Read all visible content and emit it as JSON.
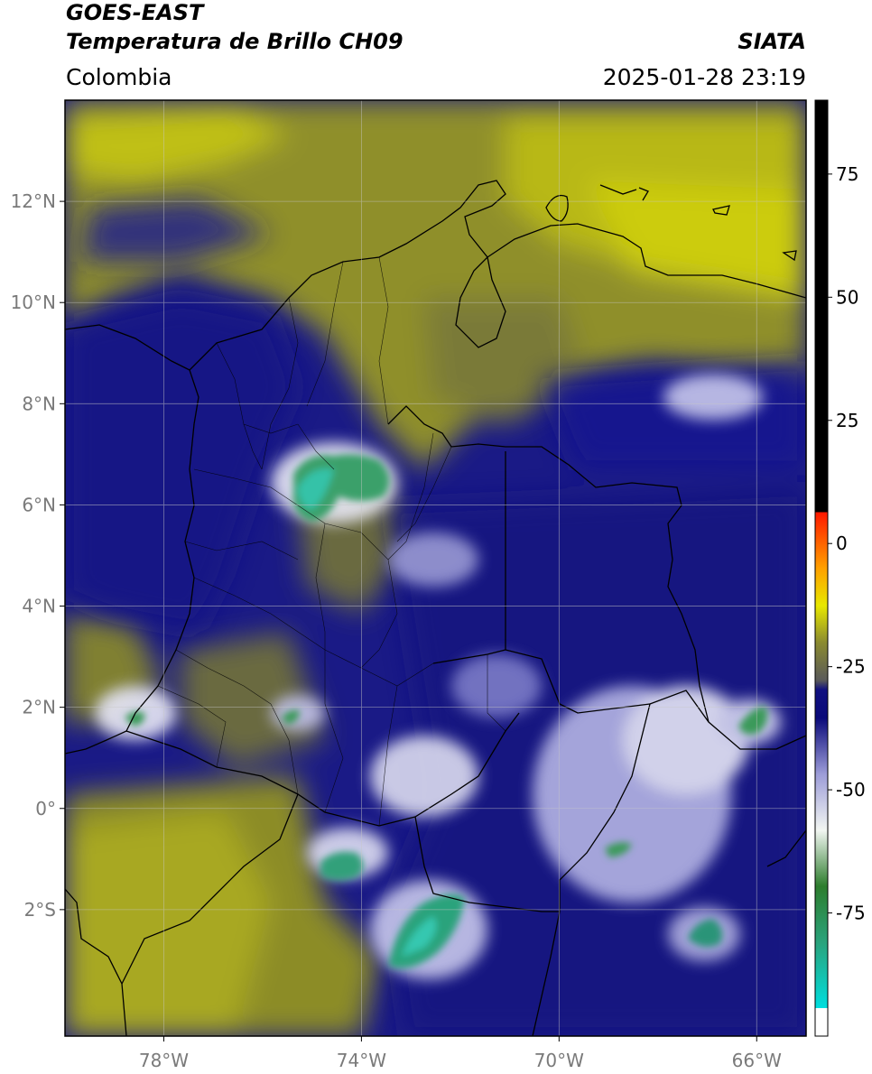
{
  "header": {
    "satellite": "GOES-EAST",
    "product": "Temperatura de Brillo CH09",
    "agency": "SIATA",
    "region": "Colombia",
    "timestamp": "2025-01-28 23:19"
  },
  "map": {
    "lon_range": [
      -80,
      -65
    ],
    "lat_range": [
      -4.5,
      14.0
    ],
    "lon_ticks": [
      {
        "v": -78,
        "label": "78°W"
      },
      {
        "v": -74,
        "label": "74°W"
      },
      {
        "v": -70,
        "label": "70°W"
      },
      {
        "v": -66,
        "label": "66°W"
      }
    ],
    "lat_ticks": [
      {
        "v": 12,
        "label": "12°N"
      },
      {
        "v": 10,
        "label": "10°N"
      },
      {
        "v": 8,
        "label": "8°N"
      },
      {
        "v": 6,
        "label": "6°N"
      },
      {
        "v": 4,
        "label": "4°N"
      },
      {
        "v": 2,
        "label": "2°N"
      },
      {
        "v": 0,
        "label": "0°"
      },
      {
        "v": -2,
        "label": "2°S"
      }
    ],
    "gridlines": true
  },
  "colorbar": {
    "range": [
      -100,
      90
    ],
    "ticks": [
      {
        "v": 75,
        "label": "75"
      },
      {
        "v": 50,
        "label": "50"
      },
      {
        "v": 25,
        "label": "25"
      },
      {
        "v": 0,
        "label": "0"
      },
      {
        "v": -25,
        "label": "-25"
      },
      {
        "v": -50,
        "label": "-50"
      },
      {
        "v": -75,
        "label": "-75"
      }
    ],
    "colors": [
      "#ffffff",
      "#00d8d8",
      "#2ea080",
      "#2d7e2d",
      "#e8f0e8",
      "#8080d0",
      "#0a0a80",
      "#5a5a50",
      "#c8c810",
      "#ff9000",
      "#ff2000",
      "#000000"
    ]
  }
}
